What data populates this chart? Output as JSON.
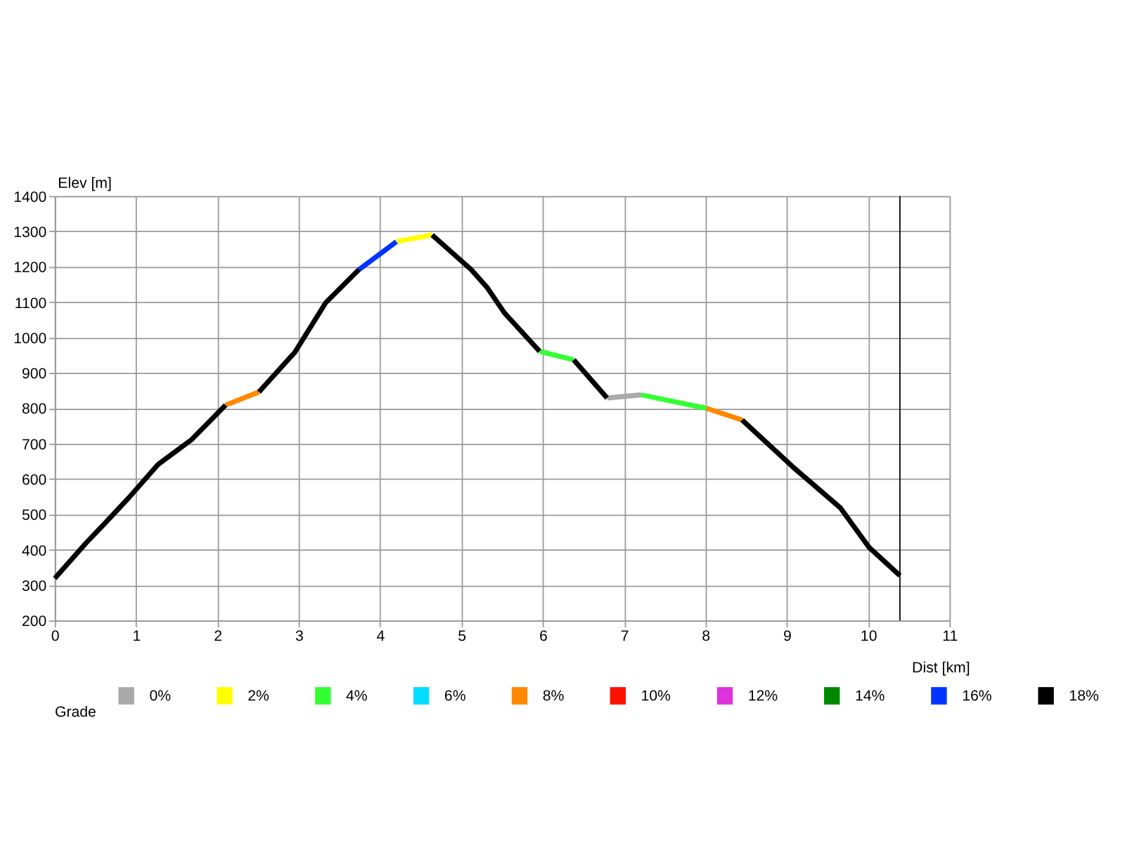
{
  "chart_data": {
    "type": "line",
    "xlabel": "Dist [km]",
    "ylabel": "Elev [m]",
    "legend_title": "Grade",
    "xlim": [
      0,
      11
    ],
    "xticks": [
      0,
      1,
      2,
      3,
      4,
      5,
      6,
      7,
      8,
      9,
      10,
      11
    ],
    "ylim": [
      200,
      1400
    ],
    "yticks": [
      200,
      300,
      400,
      500,
      600,
      700,
      800,
      900,
      1000,
      1100,
      1200,
      1300,
      1400
    ],
    "grid": true,
    "legend": "bottom",
    "marker": "none",
    "line_style": "solid",
    "ref_lines": [
      {
        "axis": "x",
        "value": 10.39,
        "color": "#000000"
      }
    ],
    "series": [
      {
        "name": "0%",
        "color": "#aaaaaa",
        "x": [
          6.79,
          7.21
        ],
        "values": [
          829,
          838
        ]
      },
      {
        "name": "2%",
        "color": "#ffff00",
        "x": [
          4.2,
          4.64
        ],
        "values": [
          1271,
          1290
        ]
      },
      {
        "name": "4%",
        "color": "#33ff33",
        "x": [
          5.96,
          6.38,
          6.8,
          7.21,
          8.01
        ],
        "values": [
          961,
          937,
          null,
          838,
          800
        ]
      },
      {
        "name": "6%",
        "color": "#00ddff"
      },
      {
        "name": "8%",
        "color": "#ff8800",
        "x": [
          2.1,
          2.51,
          5,
          8.01,
          8.45
        ],
        "values": [
          809,
          846,
          null,
          800,
          767
        ]
      },
      {
        "name": "10%",
        "color": "#ff1100"
      },
      {
        "name": "12%",
        "color": "#dd33dd"
      },
      {
        "name": "14%",
        "color": "#008800"
      },
      {
        "name": "16%",
        "color": "#0033ff",
        "x": [
          3.74,
          4.2
        ],
        "values": [
          1192,
          1271
        ]
      },
      {
        "name": "18%",
        "color": "#000000",
        "x": [
          0,
          0.38,
          0.6,
          0.91,
          1.27,
          1.68,
          2.1,
          2.3,
          2.51,
          2.95,
          3.33,
          3.74,
          4.2,
          4.64,
          5.12,
          5.32,
          5.53,
          5.96,
          6.2,
          6.38,
          6.79,
          7.5,
          8.45,
          9.07,
          9.66,
          10.01,
          10.39
        ],
        "values": [
          319,
          418,
          471,
          547,
          641,
          711,
          809,
          null,
          846,
          958,
          1098,
          1192,
          null,
          1290,
          1192,
          1140,
          1069,
          961,
          null,
          937,
          829,
          null,
          767,
          635,
          518,
          407,
          327
        ]
      }
    ]
  }
}
